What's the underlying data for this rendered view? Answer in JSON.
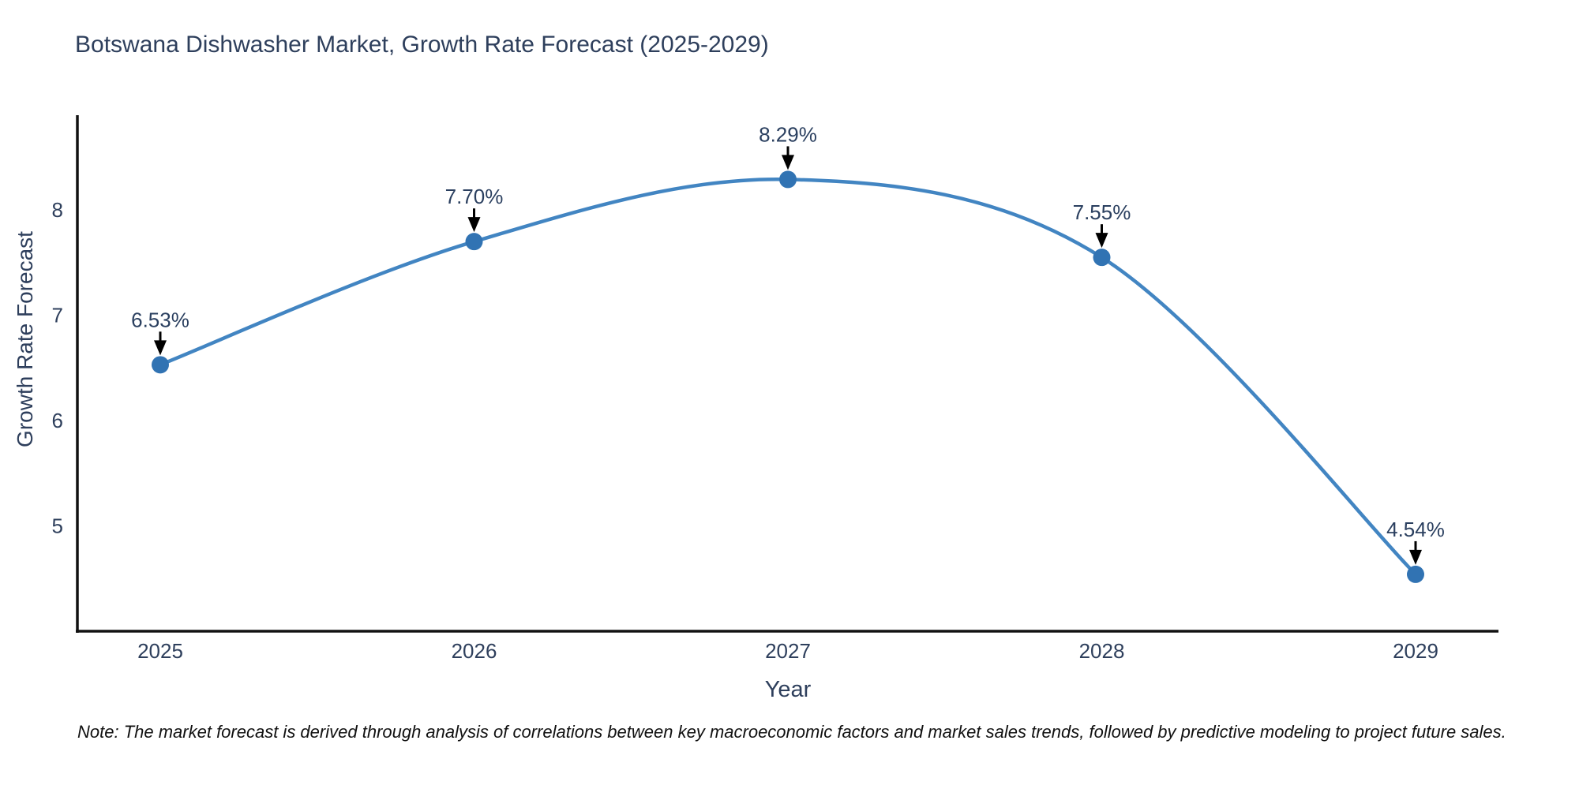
{
  "chart": {
    "note": "Note: The market forecast is derived through analysis of correlations between key macroeconomic factors and market sales trends, followed by predictive modeling to project future sales."
  },
  "chart_data": {
    "type": "line",
    "title": "Botswana Dishwasher Market, Growth Rate Forecast (2025-2029)",
    "x": [
      "2025",
      "2026",
      "2027",
      "2028",
      "2029"
    ],
    "series": [
      {
        "name": "Growth Rate Forecast",
        "values": [
          6.53,
          7.7,
          8.29,
          7.55,
          4.54
        ],
        "point_labels": [
          "6.53%",
          "7.70%",
          "8.29%",
          "7.55%",
          "4.54%"
        ]
      }
    ],
    "xlabel": "Year",
    "ylabel": "Growth Rate Forecast",
    "yticks": [
      5,
      6,
      7,
      8
    ],
    "ylim": [
      4.0,
      8.9
    ],
    "line_shape": "spline",
    "markers": true,
    "grid": false,
    "legend": "none",
    "colors": {
      "line": "#4285c2",
      "marker": "#3173b3",
      "axis": "#111111",
      "text": "#2e3f5c",
      "annotation_arrow": "#000000"
    }
  }
}
